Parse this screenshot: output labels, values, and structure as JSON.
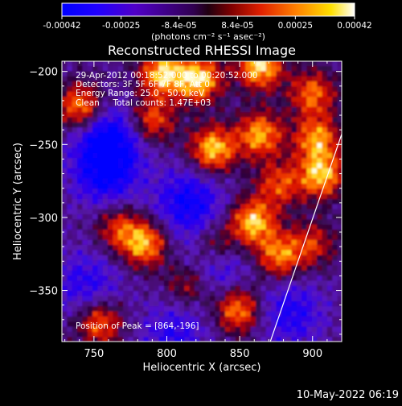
{
  "chart_data": {
    "type": "heatmap",
    "title": "Reconstructed RHESSI Image",
    "xlabel": "Heliocentric X (arcsec)",
    "ylabel": "Heliocentric Y (arcsec)",
    "xlim": [
      728,
      920
    ],
    "ylim": [
      -385,
      -193
    ],
    "x_ticks": [
      750,
      800,
      850,
      900
    ],
    "y_ticks": [
      -200,
      -250,
      -300,
      -350
    ],
    "colorbar": {
      "range": [
        -0.00042,
        0.00042
      ],
      "tick_labels": [
        "-0.00042",
        "-0.00025",
        "-8.4e-05",
        "8.4e-05",
        "0.00025",
        "0.00042"
      ],
      "tick_values": [
        -0.00042,
        -0.00025,
        -8.4e-05,
        8.4e-05,
        0.00025,
        0.00042
      ],
      "label": "(photons cm⁻² s⁻¹ asec⁻²)",
      "colormap": "hot-diverging (blue → purple → red → orange → yellow → white)"
    },
    "annotations": [
      "29-Apr-2012 00:18:52.000 to 00:20:52.000",
      "Detectors: 3F 5F 6F 7F 8F, Att 0",
      "Energy Range: 25.0 - 50.0 keV",
      "Clean     Total counts: 1.47E+03"
    ],
    "peak_label": "Position of Peak = [864,-196]",
    "peak_position": [
      864,
      -196
    ],
    "limb_line": [
      [
        871,
        -385
      ],
      [
        920,
        -243
      ]
    ],
    "bright_regions": [
      {
        "x": 797,
        "y": -201,
        "intensity": 0.0004
      },
      {
        "x": 822,
        "y": -205,
        "intensity": 0.00042
      },
      {
        "x": 864,
        "y": -196,
        "intensity": 0.00042
      },
      {
        "x": 900,
        "y": -215,
        "intensity": 0.0003
      },
      {
        "x": 741,
        "y": -224,
        "intensity": 0.00035
      },
      {
        "x": 790,
        "y": -233,
        "intensity": 0.00028
      },
      {
        "x": 832,
        "y": -253,
        "intensity": 0.0004
      },
      {
        "x": 864,
        "y": -243,
        "intensity": 0.00036
      },
      {
        "x": 903,
        "y": -246,
        "intensity": 0.00034
      },
      {
        "x": 906,
        "y": -271,
        "intensity": 0.00038
      },
      {
        "x": 877,
        "y": -277,
        "intensity": 0.00026
      },
      {
        "x": 859,
        "y": -303,
        "intensity": 0.0004
      },
      {
        "x": 785,
        "y": -318,
        "intensity": 0.00036
      },
      {
        "x": 767,
        "y": -307,
        "intensity": 0.00024
      },
      {
        "x": 833,
        "y": -319,
        "intensity": 0.00024
      },
      {
        "x": 877,
        "y": -326,
        "intensity": 0.00032
      },
      {
        "x": 849,
        "y": -363,
        "intensity": 0.00034
      },
      {
        "x": 754,
        "y": -372,
        "intensity": 0.0003
      },
      {
        "x": 815,
        "y": -345,
        "intensity": 0.00022
      },
      {
        "x": 900,
        "y": -318,
        "intensity": 0.00022
      }
    ],
    "dim_regions": [
      {
        "x": 760,
        "y": -245,
        "intensity": -0.0004
      },
      {
        "x": 758,
        "y": -270,
        "intensity": -0.00035
      },
      {
        "x": 815,
        "y": -290,
        "intensity": -0.00036
      },
      {
        "x": 832,
        "y": -332,
        "intensity": -0.0003
      },
      {
        "x": 745,
        "y": -345,
        "intensity": -0.00025
      },
      {
        "x": 885,
        "y": -365,
        "intensity": -0.00028
      },
      {
        "x": 805,
        "y": -380,
        "intensity": -0.00024
      }
    ]
  },
  "footer": {
    "timestamp": "10-May-2022 06:19"
  }
}
